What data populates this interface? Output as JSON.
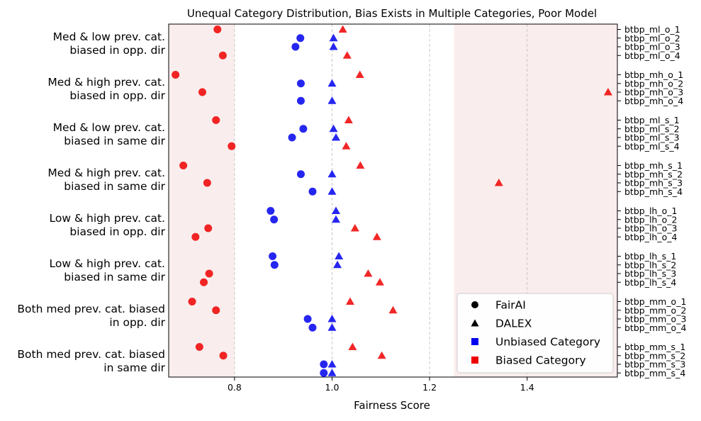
{
  "chart_data": {
    "type": "scatter",
    "title": "Unequal Category Distribution, Bias Exists in Multiple Categories, Poor Model",
    "xlabel": "Fairness Score",
    "ylabel": "",
    "xlim": [
      0.665,
      1.585
    ],
    "xticks": [
      0.8,
      1.0,
      1.2,
      1.4
    ],
    "grid": "x",
    "shaded_regions": [
      {
        "from": 0.665,
        "to": 0.8,
        "color": "#f6dede"
      },
      {
        "from": 1.25,
        "to": 1.585,
        "color": "#f6dede"
      }
    ],
    "colors": {
      "unbiased": "#0000ee",
      "biased": "#ee0000"
    },
    "groups": [
      {
        "label_lines": [
          "Med & low prev. cat.",
          "biased in opp. dir"
        ],
        "rows": [
          0,
          1,
          2,
          3
        ]
      },
      {
        "label_lines": [
          "Med & high prev. cat.",
          "biased in opp. dir"
        ],
        "rows": [
          4,
          5,
          6,
          7
        ]
      },
      {
        "label_lines": [
          "Med & low prev. cat.",
          "biased in same dir"
        ],
        "rows": [
          8,
          9,
          10,
          11
        ]
      },
      {
        "label_lines": [
          "Med & high prev. cat.",
          "biased in same dir"
        ],
        "rows": [
          12,
          13,
          14,
          15
        ]
      },
      {
        "label_lines": [
          "Low & high prev. cat.",
          "biased in opp. dir"
        ],
        "rows": [
          16,
          17,
          18,
          19
        ]
      },
      {
        "label_lines": [
          "Low & high prev. cat.",
          "biased in same dir"
        ],
        "rows": [
          20,
          21,
          22,
          23
        ]
      },
      {
        "label_lines": [
          "Both med prev. cat. biased",
          "in opp. dir"
        ],
        "rows": [
          24,
          25,
          26,
          27
        ]
      },
      {
        "label_lines": [
          "Both med prev. cat. biased",
          "in same dir"
        ],
        "rows": [
          28,
          29,
          30,
          31
        ]
      }
    ],
    "rows": [
      {
        "label": "btbp_ml_o_1",
        "fairai": 0.765,
        "dalex": 1.022,
        "biased": true
      },
      {
        "label": "btbp_ml_o_2",
        "fairai": 0.935,
        "dalex": 1.003,
        "biased": false
      },
      {
        "label": "btbp_ml_o_3",
        "fairai": 0.925,
        "dalex": 1.003,
        "biased": false
      },
      {
        "label": "btbp_ml_o_4",
        "fairai": 0.776,
        "dalex": 1.031,
        "biased": true
      },
      {
        "label": "btbp_mh_o_1",
        "fairai": 0.679,
        "dalex": 1.057,
        "biased": true
      },
      {
        "label": "btbp_mh_o_2",
        "fairai": 0.936,
        "dalex": 1.0,
        "biased": false
      },
      {
        "label": "btbp_mh_o_3",
        "fairai": 0.734,
        "dalex": 1.566,
        "biased": true
      },
      {
        "label": "btbp_mh_o_4",
        "fairai": 0.936,
        "dalex": 1.0,
        "biased": false
      },
      {
        "label": "btbp_ml_s_1",
        "fairai": 0.762,
        "dalex": 1.034,
        "biased": true
      },
      {
        "label": "btbp_ml_s_2",
        "fairai": 0.941,
        "dalex": 1.003,
        "biased": false
      },
      {
        "label": "btbp_ml_s_3",
        "fairai": 0.918,
        "dalex": 1.008,
        "biased": false
      },
      {
        "label": "btbp_ml_s_4",
        "fairai": 0.794,
        "dalex": 1.029,
        "biased": true
      },
      {
        "label": "btbp_mh_s_1",
        "fairai": 0.695,
        "dalex": 1.058,
        "biased": true
      },
      {
        "label": "btbp_mh_s_2",
        "fairai": 0.936,
        "dalex": 1.0,
        "biased": false
      },
      {
        "label": "btbp_mh_s_3",
        "fairai": 0.744,
        "dalex": 1.342,
        "biased": true
      },
      {
        "label": "btbp_mh_s_4",
        "fairai": 0.96,
        "dalex": 1.0,
        "biased": false
      },
      {
        "label": "btbp_lh_o_1",
        "fairai": 0.874,
        "dalex": 1.008,
        "biased": false
      },
      {
        "label": "btbp_lh_o_2",
        "fairai": 0.881,
        "dalex": 1.008,
        "biased": false
      },
      {
        "label": "btbp_lh_o_3",
        "fairai": 0.746,
        "dalex": 1.047,
        "biased": true
      },
      {
        "label": "btbp_lh_o_4",
        "fairai": 0.72,
        "dalex": 1.092,
        "biased": true
      },
      {
        "label": "btbp_lh_s_1",
        "fairai": 0.878,
        "dalex": 1.014,
        "biased": false
      },
      {
        "label": "btbp_lh_s_2",
        "fairai": 0.882,
        "dalex": 1.011,
        "biased": false
      },
      {
        "label": "btbp_lh_s_3",
        "fairai": 0.748,
        "dalex": 1.074,
        "biased": true
      },
      {
        "label": "btbp_lh_s_4",
        "fairai": 0.737,
        "dalex": 1.098,
        "biased": true
      },
      {
        "label": "btbp_mm_o_1",
        "fairai": 0.713,
        "dalex": 1.037,
        "biased": true
      },
      {
        "label": "btbp_mm_o_2",
        "fairai": 0.762,
        "dalex": 1.125,
        "biased": true
      },
      {
        "label": "btbp_mm_o_3",
        "fairai": 0.95,
        "dalex": 1.0,
        "biased": false
      },
      {
        "label": "btbp_mm_o_4",
        "fairai": 0.96,
        "dalex": 1.0,
        "biased": false
      },
      {
        "label": "btbp_mm_s_1",
        "fairai": 0.728,
        "dalex": 1.042,
        "biased": true
      },
      {
        "label": "btbp_mm_s_2",
        "fairai": 0.777,
        "dalex": 1.102,
        "biased": true
      },
      {
        "label": "btbp_mm_s_3",
        "fairai": 0.983,
        "dalex": 1.0,
        "biased": false
      },
      {
        "label": "btbp_mm_s_4",
        "fairai": 0.983,
        "dalex": 1.0,
        "biased": false
      }
    ],
    "legend": {
      "position": "lower-right",
      "entries": [
        {
          "label": "FairAI",
          "marker": "circle",
          "color": "#000000"
        },
        {
          "label": "DALEX",
          "marker": "triangle",
          "color": "#000000"
        },
        {
          "label": "Unbiased Category",
          "marker": "square",
          "color": "#0000ee"
        },
        {
          "label": "Biased Category",
          "marker": "square",
          "color": "#ee0000"
        }
      ]
    }
  }
}
